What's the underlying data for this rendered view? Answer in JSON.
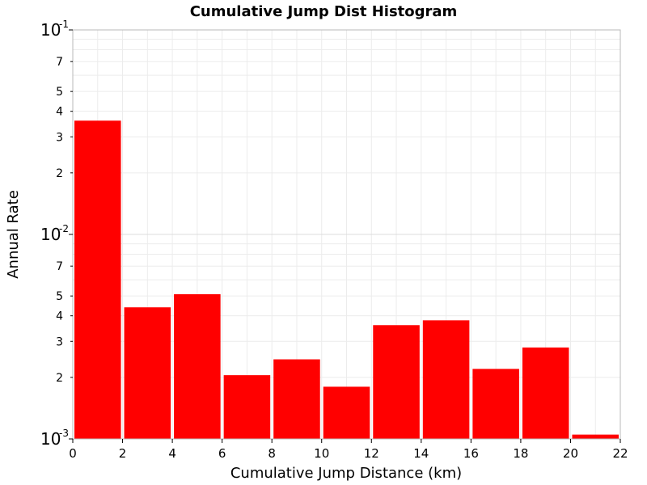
{
  "chart_data": {
    "type": "bar",
    "title": "Cumulative Jump Dist Histogram",
    "xlabel": "Cumulative Jump Distance (km)",
    "ylabel": "Annual Rate",
    "xlim": [
      0,
      22
    ],
    "ylim": [
      0.001,
      0.1
    ],
    "yscale": "log",
    "grid": true,
    "bar_color": "#ff0000",
    "bin_width": 2,
    "x_ticks": [
      "0",
      "2",
      "4",
      "6",
      "8",
      "10",
      "12",
      "14",
      "16",
      "18",
      "20",
      "22"
    ],
    "y_decades": [
      {
        "value": 0.1,
        "base": "10",
        "exp": "-1"
      },
      {
        "value": 0.01,
        "base": "10",
        "exp": "-2"
      },
      {
        "value": 0.001,
        "base": "10",
        "exp": "-3"
      }
    ],
    "y_minor_labels": [
      {
        "value": 0.07,
        "label": "7"
      },
      {
        "value": 0.05,
        "label": "5"
      },
      {
        "value": 0.04,
        "label": "4"
      },
      {
        "value": 0.03,
        "label": "3"
      },
      {
        "value": 0.02,
        "label": "2"
      },
      {
        "value": 0.007,
        "label": "7"
      },
      {
        "value": 0.005,
        "label": "5"
      },
      {
        "value": 0.004,
        "label": "4"
      },
      {
        "value": 0.003,
        "label": "3"
      },
      {
        "value": 0.002,
        "label": "2"
      }
    ],
    "bins": [
      {
        "x0": 0,
        "x1": 2,
        "value": 0.036
      },
      {
        "x0": 2,
        "x1": 4,
        "value": 0.0044
      },
      {
        "x0": 4,
        "x1": 6,
        "value": 0.0051
      },
      {
        "x0": 6,
        "x1": 8,
        "value": 0.00205
      },
      {
        "x0": 8,
        "x1": 10,
        "value": 0.00245
      },
      {
        "x0": 10,
        "x1": 12,
        "value": 0.0018
      },
      {
        "x0": 12,
        "x1": 14,
        "value": 0.0036
      },
      {
        "x0": 14,
        "x1": 16,
        "value": 0.0038
      },
      {
        "x0": 16,
        "x1": 18,
        "value": 0.0022
      },
      {
        "x0": 18,
        "x1": 20,
        "value": 0.0028
      },
      {
        "x0": 20,
        "x1": 22,
        "value": 0.00105
      }
    ]
  }
}
